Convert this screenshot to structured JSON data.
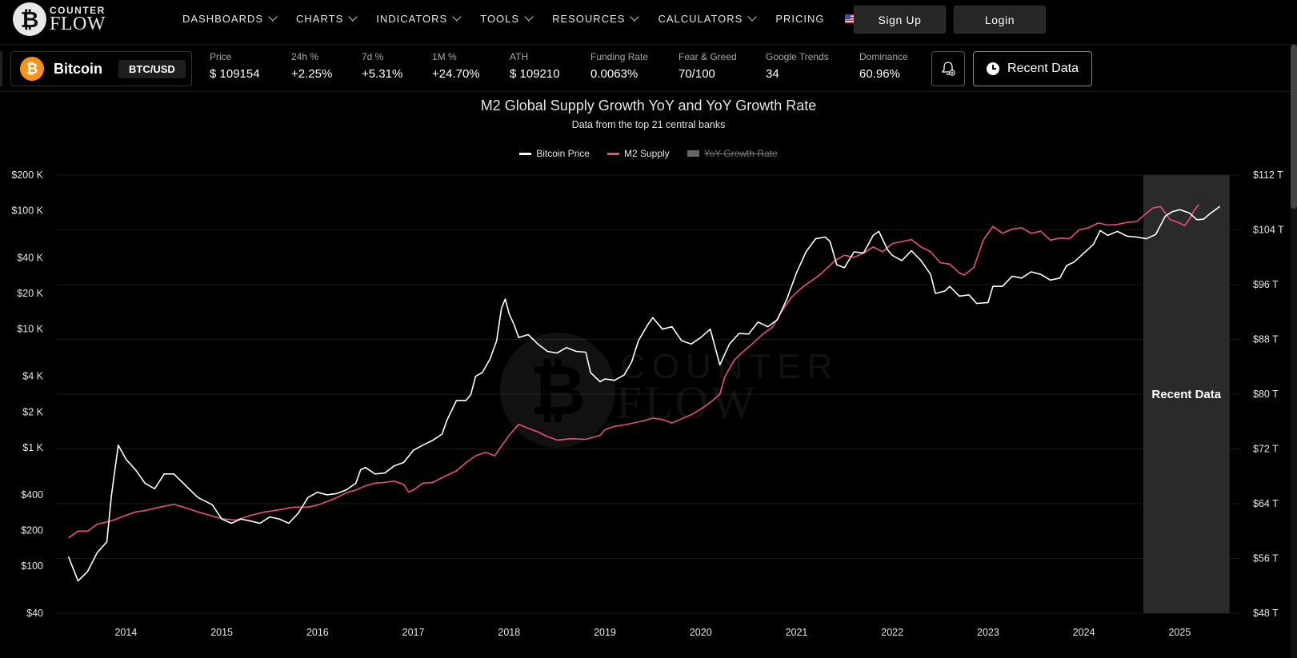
{
  "brand": {
    "line1": "COUNTER",
    "line2": "FLOW",
    "icon": "bitcoin-logo-icon"
  },
  "nav": {
    "items": [
      {
        "label": "DASHBOARDS",
        "dropdown": true
      },
      {
        "label": "CHARTS",
        "dropdown": true
      },
      {
        "label": "INDICATORS",
        "dropdown": true
      },
      {
        "label": "TOOLS",
        "dropdown": true
      },
      {
        "label": "RESOURCES",
        "dropdown": true
      },
      {
        "label": "CALCULATORS",
        "dropdown": true
      },
      {
        "label": "PRICING",
        "dropdown": false
      }
    ],
    "language_icon": "us-flag-icon",
    "signup_label": "Sign Up",
    "login_label": "Login"
  },
  "ticker": {
    "coin_name": "Bitcoin",
    "pair": "BTC/USD",
    "stats": [
      {
        "label": "Price",
        "value": "$ 109154"
      },
      {
        "label": "24h %",
        "value": "+2.25%"
      },
      {
        "label": "7d %",
        "value": "+5.31%"
      },
      {
        "label": "1M %",
        "value": "+24.70%"
      },
      {
        "label": "ATH",
        "value": "$ 109210"
      },
      {
        "label": "Funding Rate",
        "value": "0.0063%"
      },
      {
        "label": "Fear & Greed",
        "value": "70/100"
      },
      {
        "label": "Google Trends",
        "value": "34"
      },
      {
        "label": "Dominance",
        "value": "60.96%"
      }
    ],
    "alert_icon": "bell-plus-icon",
    "recent_label": "Recent Data"
  },
  "colors": {
    "btc": "#ffffff",
    "m2": "#e8507a",
    "recent_band": "#2a2a2a",
    "accent": "#f7931a"
  },
  "chart_data": {
    "type": "line",
    "title": "M2 Global Supply Growth YoY and YoY Growth Rate",
    "subtitle": "Data from the top 21 central banks",
    "legend": [
      {
        "name": "Bitcoin Price",
        "color": "#ffffff",
        "visible": true
      },
      {
        "name": "M2 Supply",
        "color": "#e8507a",
        "visible": true
      },
      {
        "name": "YoY Growth Rate",
        "color": "#666666",
        "visible": false
      }
    ],
    "left_axis": {
      "scale": "log",
      "ticks": [
        "$200 K",
        "$100 K",
        "$40 K",
        "$20 K",
        "$10 K",
        "$4 K",
        "$2 K",
        "$1 K",
        "$400",
        "$200",
        "$100",
        "$40"
      ],
      "tick_values": [
        200000,
        100000,
        40000,
        20000,
        10000,
        4000,
        2000,
        1000,
        400,
        200,
        100,
        40
      ],
      "range": [
        40,
        200000
      ]
    },
    "right_axis": {
      "ticks": [
        "$112 T",
        "$104 T",
        "$96 T",
        "$88 T",
        "$80 T",
        "$72 T",
        "$64 T",
        "$56 T",
        "$48 T"
      ],
      "tick_values": [
        112,
        104,
        96,
        88,
        80,
        72,
        64,
        56,
        48
      ],
      "range": [
        48,
        112
      ]
    },
    "x_axis": {
      "ticks": [
        "2014",
        "2015",
        "2016",
        "2017",
        "2018",
        "2019",
        "2020",
        "2021",
        "2022",
        "2023",
        "2024",
        "2025"
      ],
      "range": [
        2013.27,
        2025.64
      ]
    },
    "recent_band": {
      "label": "Recent Data",
      "from": 2024.62,
      "to": 2025.52
    },
    "series": [
      {
        "name": "Bitcoin Price",
        "points": [
          [
            2013.4,
            120
          ],
          [
            2013.5,
            75
          ],
          [
            2013.6,
            90
          ],
          [
            2013.7,
            130
          ],
          [
            2013.8,
            160
          ],
          [
            2013.85,
            400
          ],
          [
            2013.92,
            1050
          ],
          [
            2014.0,
            800
          ],
          [
            2014.1,
            650
          ],
          [
            2014.2,
            500
          ],
          [
            2014.3,
            450
          ],
          [
            2014.4,
            600
          ],
          [
            2014.5,
            600
          ],
          [
            2014.6,
            500
          ],
          [
            2014.75,
            380
          ],
          [
            2014.9,
            330
          ],
          [
            2015.0,
            250
          ],
          [
            2015.1,
            230
          ],
          [
            2015.2,
            250
          ],
          [
            2015.3,
            240
          ],
          [
            2015.4,
            230
          ],
          [
            2015.5,
            260
          ],
          [
            2015.6,
            250
          ],
          [
            2015.7,
            230
          ],
          [
            2015.8,
            280
          ],
          [
            2015.9,
            380
          ],
          [
            2016.0,
            420
          ],
          [
            2016.1,
            400
          ],
          [
            2016.2,
            410
          ],
          [
            2016.3,
            440
          ],
          [
            2016.4,
            500
          ],
          [
            2016.45,
            650
          ],
          [
            2016.5,
            680
          ],
          [
            2016.6,
            600
          ],
          [
            2016.7,
            610
          ],
          [
            2016.8,
            700
          ],
          [
            2016.9,
            750
          ],
          [
            2017.0,
            950
          ],
          [
            2017.1,
            1050
          ],
          [
            2017.2,
            1150
          ],
          [
            2017.3,
            1300
          ],
          [
            2017.35,
            1700
          ],
          [
            2017.45,
            2500
          ],
          [
            2017.55,
            2500
          ],
          [
            2017.6,
            2800
          ],
          [
            2017.65,
            4000
          ],
          [
            2017.72,
            4300
          ],
          [
            2017.8,
            5600
          ],
          [
            2017.87,
            8000
          ],
          [
            2017.92,
            15000
          ],
          [
            2017.96,
            18000
          ],
          [
            2018.0,
            13500
          ],
          [
            2018.05,
            11000
          ],
          [
            2018.1,
            8500
          ],
          [
            2018.2,
            9000
          ],
          [
            2018.3,
            7500
          ],
          [
            2018.4,
            6500
          ],
          [
            2018.5,
            6300
          ],
          [
            2018.6,
            7000
          ],
          [
            2018.7,
            6500
          ],
          [
            2018.8,
            6400
          ],
          [
            2018.85,
            4300
          ],
          [
            2018.95,
            3600
          ],
          [
            2019.0,
            3800
          ],
          [
            2019.1,
            3700
          ],
          [
            2019.2,
            4100
          ],
          [
            2019.28,
            5300
          ],
          [
            2019.35,
            8000
          ],
          [
            2019.45,
            11000
          ],
          [
            2019.5,
            12500
          ],
          [
            2019.6,
            10000
          ],
          [
            2019.7,
            10500
          ],
          [
            2019.8,
            8000
          ],
          [
            2019.9,
            7500
          ],
          [
            2020.0,
            8500
          ],
          [
            2020.1,
            10000
          ],
          [
            2020.2,
            5000
          ],
          [
            2020.3,
            7500
          ],
          [
            2020.4,
            9200
          ],
          [
            2020.5,
            9100
          ],
          [
            2020.6,
            11500
          ],
          [
            2020.7,
            10500
          ],
          [
            2020.8,
            12000
          ],
          [
            2020.9,
            18000
          ],
          [
            2021.0,
            30000
          ],
          [
            2021.1,
            45000
          ],
          [
            2021.2,
            58000
          ],
          [
            2021.3,
            60000
          ],
          [
            2021.35,
            55000
          ],
          [
            2021.42,
            35000
          ],
          [
            2021.5,
            33000
          ],
          [
            2021.6,
            45000
          ],
          [
            2021.7,
            44000
          ],
          [
            2021.8,
            62000
          ],
          [
            2021.86,
            67000
          ],
          [
            2021.95,
            47000
          ],
          [
            2022.0,
            42000
          ],
          [
            2022.1,
            38000
          ],
          [
            2022.2,
            46000
          ],
          [
            2022.3,
            38000
          ],
          [
            2022.4,
            29000
          ],
          [
            2022.45,
            20000
          ],
          [
            2022.55,
            21000
          ],
          [
            2022.6,
            23000
          ],
          [
            2022.7,
            19000
          ],
          [
            2022.8,
            19500
          ],
          [
            2022.88,
            16500
          ],
          [
            2023.0,
            16800
          ],
          [
            2023.05,
            23000
          ],
          [
            2023.15,
            23000
          ],
          [
            2023.25,
            28000
          ],
          [
            2023.35,
            27000
          ],
          [
            2023.45,
            30500
          ],
          [
            2023.55,
            29000
          ],
          [
            2023.65,
            26000
          ],
          [
            2023.75,
            27000
          ],
          [
            2023.82,
            34500
          ],
          [
            2023.9,
            37000
          ],
          [
            2024.0,
            44000
          ],
          [
            2024.1,
            52000
          ],
          [
            2024.17,
            68000
          ],
          [
            2024.25,
            62000
          ],
          [
            2024.35,
            67000
          ],
          [
            2024.45,
            61000
          ],
          [
            2024.55,
            60000
          ],
          [
            2024.65,
            58000
          ],
          [
            2024.75,
            63000
          ],
          [
            2024.85,
            90000
          ],
          [
            2024.92,
            98000
          ],
          [
            2025.0,
            102000
          ],
          [
            2025.1,
            96000
          ],
          [
            2025.18,
            84000
          ],
          [
            2025.25,
            85000
          ],
          [
            2025.32,
            95000
          ],
          [
            2025.38,
            103000
          ],
          [
            2025.42,
            109000
          ]
        ]
      },
      {
        "name": "M2 Supply",
        "points": [
          [
            2013.4,
            59
          ],
          [
            2013.5,
            60
          ],
          [
            2013.6,
            60
          ],
          [
            2013.7,
            61
          ],
          [
            2013.85,
            61.5
          ],
          [
            2014.0,
            62.3
          ],
          [
            2014.1,
            62.8
          ],
          [
            2014.2,
            63
          ],
          [
            2014.35,
            63.5
          ],
          [
            2014.5,
            63.9
          ],
          [
            2014.6,
            63.5
          ],
          [
            2014.75,
            62.8
          ],
          [
            2014.9,
            62.2
          ],
          [
            2015.0,
            61.8
          ],
          [
            2015.15,
            61.6
          ],
          [
            2015.3,
            62.3
          ],
          [
            2015.45,
            62.8
          ],
          [
            2015.6,
            63.1
          ],
          [
            2015.75,
            63.5
          ],
          [
            2015.9,
            63.5
          ],
          [
            2016.0,
            63.8
          ],
          [
            2016.1,
            64.3
          ],
          [
            2016.2,
            64.9
          ],
          [
            2016.3,
            65.6
          ],
          [
            2016.4,
            66
          ],
          [
            2016.5,
            66.6
          ],
          [
            2016.6,
            67
          ],
          [
            2016.7,
            67.1
          ],
          [
            2016.8,
            67.3
          ],
          [
            2016.9,
            66.8
          ],
          [
            2016.95,
            65.7
          ],
          [
            2017.0,
            66
          ],
          [
            2017.1,
            67
          ],
          [
            2017.2,
            67.1
          ],
          [
            2017.3,
            67.8
          ],
          [
            2017.45,
            68.8
          ],
          [
            2017.55,
            70
          ],
          [
            2017.65,
            71
          ],
          [
            2017.75,
            71.5
          ],
          [
            2017.85,
            71
          ],
          [
            2017.9,
            72
          ],
          [
            2018.0,
            74
          ],
          [
            2018.1,
            75.6
          ],
          [
            2018.2,
            75
          ],
          [
            2018.3,
            74.5
          ],
          [
            2018.4,
            73.8
          ],
          [
            2018.5,
            73.3
          ],
          [
            2018.65,
            73.5
          ],
          [
            2018.8,
            73.4
          ],
          [
            2018.95,
            74
          ],
          [
            2019.0,
            74.8
          ],
          [
            2019.1,
            75.3
          ],
          [
            2019.2,
            75.5
          ],
          [
            2019.3,
            75.8
          ],
          [
            2019.4,
            76.1
          ],
          [
            2019.5,
            76.5
          ],
          [
            2019.6,
            76.3
          ],
          [
            2019.7,
            75.8
          ],
          [
            2019.8,
            76.4
          ],
          [
            2019.9,
            77
          ],
          [
            2020.0,
            77.8
          ],
          [
            2020.1,
            78.8
          ],
          [
            2020.2,
            80
          ],
          [
            2020.25,
            82.5
          ],
          [
            2020.35,
            85
          ],
          [
            2020.45,
            86.3
          ],
          [
            2020.55,
            87.5
          ],
          [
            2020.65,
            88.8
          ],
          [
            2020.75,
            89.8
          ],
          [
            2020.85,
            92.2
          ],
          [
            2020.95,
            94.2
          ],
          [
            2021.05,
            95.5
          ],
          [
            2021.15,
            96.5
          ],
          [
            2021.25,
            97.5
          ],
          [
            2021.4,
            99.5
          ],
          [
            2021.5,
            100.3
          ],
          [
            2021.6,
            100
          ],
          [
            2021.7,
            100.6
          ],
          [
            2021.8,
            101.5
          ],
          [
            2021.9,
            100.8
          ],
          [
            2022.0,
            102
          ],
          [
            2022.1,
            102.3
          ],
          [
            2022.2,
            102.6
          ],
          [
            2022.3,
            101.5
          ],
          [
            2022.4,
            100.8
          ],
          [
            2022.5,
            99.2
          ],
          [
            2022.6,
            99
          ],
          [
            2022.7,
            97.7
          ],
          [
            2022.75,
            97.4
          ],
          [
            2022.85,
            98.5
          ],
          [
            2022.95,
            102.5
          ],
          [
            2023.05,
            104.5
          ],
          [
            2023.15,
            103.5
          ],
          [
            2023.25,
            104.1
          ],
          [
            2023.35,
            104.3
          ],
          [
            2023.45,
            103.5
          ],
          [
            2023.55,
            103.8
          ],
          [
            2023.65,
            102.5
          ],
          [
            2023.75,
            102.8
          ],
          [
            2023.85,
            102.7
          ],
          [
            2023.95,
            104
          ],
          [
            2024.05,
            104.3
          ],
          [
            2024.15,
            105
          ],
          [
            2024.25,
            104.7
          ],
          [
            2024.35,
            104.8
          ],
          [
            2024.45,
            105.1
          ],
          [
            2024.55,
            105.2
          ],
          [
            2024.65,
            106.4
          ],
          [
            2024.72,
            107.2
          ],
          [
            2024.8,
            107.4
          ],
          [
            2024.9,
            105.5
          ],
          [
            2025.0,
            105
          ],
          [
            2025.05,
            104.6
          ],
          [
            2025.1,
            105.5
          ],
          [
            2025.15,
            106.8
          ],
          [
            2025.2,
            107.7
          ]
        ]
      }
    ]
  }
}
